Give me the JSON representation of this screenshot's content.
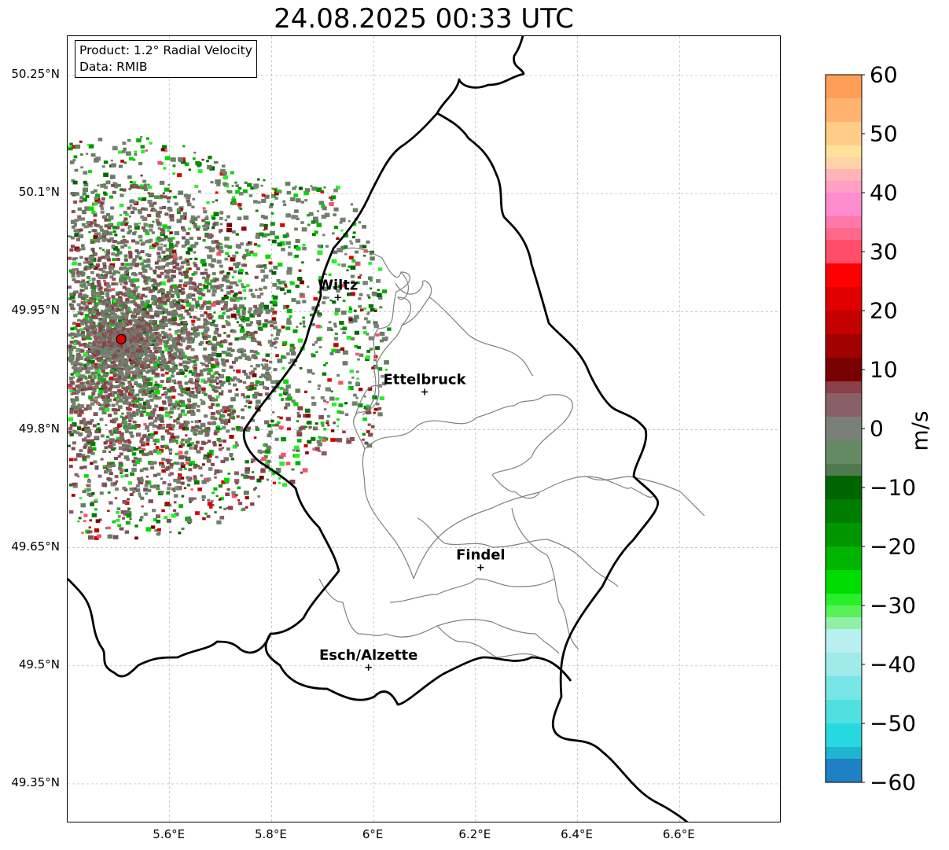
{
  "title": "24.08.2025 00:33 UTC",
  "info": {
    "product": "Product: 1.2° Radial Velocity",
    "source": "Data: RMIB"
  },
  "axes": {
    "lon_range": [
      5.4,
      6.8
    ],
    "lat_range": [
      49.3,
      50.3
    ],
    "x_ticks": [
      {
        "value": 5.6,
        "label": "5.6°E"
      },
      {
        "value": 5.8,
        "label": "5.8°E"
      },
      {
        "value": 6.0,
        "label": "6°E"
      },
      {
        "value": 6.2,
        "label": "6.2°E"
      },
      {
        "value": 6.4,
        "label": "6.4°E"
      },
      {
        "value": 6.6,
        "label": "6.6°E"
      }
    ],
    "y_ticks": [
      {
        "value": 50.25,
        "label": "50.25°N"
      },
      {
        "value": 50.1,
        "label": "50.1°N"
      },
      {
        "value": 49.95,
        "label": "49.95°N"
      },
      {
        "value": 49.8,
        "label": "49.8°N"
      },
      {
        "value": 49.65,
        "label": "49.65°N"
      },
      {
        "value": 49.5,
        "label": "49.5°N"
      },
      {
        "value": 49.35,
        "label": "49.35°N"
      }
    ],
    "grid": true
  },
  "radar_site": {
    "lon": 5.505,
    "lat": 49.915,
    "color": "#e00000"
  },
  "cities": [
    {
      "name": "Wiltz",
      "lon": 5.93,
      "lat": 49.968
    },
    {
      "name": "Ettelbruck",
      "lon": 6.1,
      "lat": 49.848
    },
    {
      "name": "Findel",
      "lon": 6.21,
      "lat": 49.625
    },
    {
      "name": "Esch/Alzette",
      "lon": 5.99,
      "lat": 49.498
    }
  ],
  "colorbar": {
    "label": "m/s",
    "min": -60,
    "max": 60,
    "ticks": [
      {
        "value": 60,
        "label": "60"
      },
      {
        "value": 50,
        "label": "50"
      },
      {
        "value": 40,
        "label": "40"
      },
      {
        "value": 30,
        "label": "30"
      },
      {
        "value": 20,
        "label": "20"
      },
      {
        "value": 10,
        "label": "10"
      },
      {
        "value": 0,
        "label": "0"
      },
      {
        "value": -10,
        "label": "−10"
      },
      {
        "value": -20,
        "label": "−20"
      },
      {
        "value": -30,
        "label": "−30"
      },
      {
        "value": -40,
        "label": "−40"
      },
      {
        "value": -50,
        "label": "−50"
      },
      {
        "value": -60,
        "label": "−60"
      }
    ],
    "bands": [
      {
        "from": 56,
        "to": 60,
        "color": "#ff9e57"
      },
      {
        "from": 52,
        "to": 56,
        "color": "#ffb36f"
      },
      {
        "from": 48,
        "to": 52,
        "color": "#ffcc8a"
      },
      {
        "from": 46,
        "to": 48,
        "color": "#ffe29a"
      },
      {
        "from": 44,
        "to": 46,
        "color": "#ffd3a8"
      },
      {
        "from": 42,
        "to": 44,
        "color": "#ffb5b8"
      },
      {
        "from": 40,
        "to": 42,
        "color": "#ffa0c4"
      },
      {
        "from": 36,
        "to": 40,
        "color": "#ff8ccf"
      },
      {
        "from": 34,
        "to": 36,
        "color": "#ff78a8"
      },
      {
        "from": 32,
        "to": 34,
        "color": "#ff6888"
      },
      {
        "from": 28,
        "to": 32,
        "color": "#ff4d6a"
      },
      {
        "from": 24,
        "to": 28,
        "color": "#ff0000"
      },
      {
        "from": 20,
        "to": 24,
        "color": "#e10000"
      },
      {
        "from": 16,
        "to": 20,
        "color": "#c50000"
      },
      {
        "from": 12,
        "to": 16,
        "color": "#a00000"
      },
      {
        "from": 8,
        "to": 12,
        "color": "#780000"
      },
      {
        "from": 6,
        "to": 8,
        "color": "#8a4048"
      },
      {
        "from": 2,
        "to": 6,
        "color": "#8a6068"
      },
      {
        "from": -2,
        "to": 2,
        "color": "#7a8078"
      },
      {
        "from": -6,
        "to": -2,
        "color": "#648a64"
      },
      {
        "from": -8,
        "to": -6,
        "color": "#4f7a4f"
      },
      {
        "from": -12,
        "to": -8,
        "color": "#006400"
      },
      {
        "from": -16,
        "to": -12,
        "color": "#007d00"
      },
      {
        "from": -20,
        "to": -16,
        "color": "#009600"
      },
      {
        "from": -24,
        "to": -20,
        "color": "#00b400"
      },
      {
        "from": -28,
        "to": -24,
        "color": "#00dc00"
      },
      {
        "from": -30,
        "to": -28,
        "color": "#28f028"
      },
      {
        "from": -32,
        "to": -30,
        "color": "#5af05a"
      },
      {
        "from": -34,
        "to": -32,
        "color": "#90f0a8"
      },
      {
        "from": -38,
        "to": -34,
        "color": "#b8f0f0"
      },
      {
        "from": -42,
        "to": -38,
        "color": "#a0eaea"
      },
      {
        "from": -46,
        "to": -42,
        "color": "#78e6e6"
      },
      {
        "from": -50,
        "to": -46,
        "color": "#50e0e0"
      },
      {
        "from": -54,
        "to": -50,
        "color": "#28d8e0"
      },
      {
        "from": -56,
        "to": -54,
        "color": "#20b4d0"
      },
      {
        "from": -60,
        "to": -56,
        "color": "#1f80c4"
      }
    ]
  }
}
